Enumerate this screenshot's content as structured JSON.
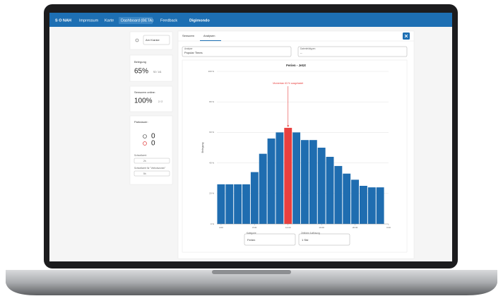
{
  "nav": {
    "brand": "S O NAH",
    "items": [
      "Impressum",
      "Karte",
      "Dashboard (BETA)",
      "Feedback",
      "Digimondo"
    ]
  },
  "sidebar": {
    "location": "Am Kranke",
    "occupancy": {
      "label": "Belegung",
      "percent": "65%",
      "count": "92 / 141"
    },
    "sensors": {
      "label": "Sensoren online:",
      "percent": "100%",
      "count": "2 / 2"
    },
    "parking": {
      "label": "Parkdauer:",
      "ok": "0",
      "violations": "0",
      "threshold_label": "Schwellwert:",
      "threshold": "2h",
      "zone_threshold_label": "Schwellwert für \"Verbotszonen\"",
      "zone_threshold": "5h"
    }
  },
  "tabs": [
    "Sensoren",
    "Analysen"
  ],
  "filters": {
    "analysis_label": "Analyse",
    "analysis": "Popular Times",
    "fields_label": "Datenfeldtypen",
    "fields": "--"
  },
  "chart_data": {
    "type": "bar",
    "title": "Ferien - Jetzt",
    "ylabel": "Belegung",
    "annotation": "Momentan 63 % ausgelastet",
    "x": [
      4,
      5,
      6,
      7,
      8,
      9,
      10,
      11,
      12,
      13,
      14,
      15,
      16,
      17,
      18,
      19,
      20,
      21,
      22,
      23
    ],
    "series": [
      {
        "name": "Belegung",
        "values": [
          26,
          26,
          26,
          26,
          34,
          46,
          56,
          60,
          63,
          60,
          55,
          55,
          50,
          44,
          38,
          33,
          29,
          25,
          24,
          24
        ],
        "colors": [
          "#1f6db0",
          "#1f6db0",
          "#1f6db0",
          "#1f6db0",
          "#1f6db0",
          "#1f6db0",
          "#1f6db0",
          "#1f6db0",
          "#e8403f",
          "#1f6db0",
          "#1f6db0",
          "#1f6db0",
          "#1f6db0",
          "#1f6db0",
          "#1f6db0",
          "#1f6db0",
          "#1f6db0",
          "#1f6db0",
          "#1f6db0",
          "#1f6db0"
        ]
      }
    ],
    "xlim": [
      3.5,
      24
    ],
    "xticks": [
      {
        "value": 4,
        "label": "4:00"
      },
      {
        "value": 8,
        "label": "8:00"
      },
      {
        "value": 12,
        "label": "12:00"
      },
      {
        "value": 16,
        "label": "16:00"
      },
      {
        "value": 20,
        "label": "20:00"
      },
      {
        "value": 24,
        "label": "0:00"
      }
    ],
    "ylim": [
      0,
      100
    ],
    "yticks": [
      {
        "value": 0,
        "label": "0 %"
      },
      {
        "value": 20,
        "label": "20 %"
      },
      {
        "value": 40,
        "label": "40 %"
      },
      {
        "value": 60,
        "label": "60 %"
      },
      {
        "value": 80,
        "label": "80 %"
      },
      {
        "value": 100,
        "label": "100 %"
      }
    ],
    "grid": true
  },
  "controls": {
    "category_label": "Kategorie",
    "category": "Ferien",
    "resolution_label": "Zeitliche Auflösung",
    "resolution": "1 Std"
  }
}
